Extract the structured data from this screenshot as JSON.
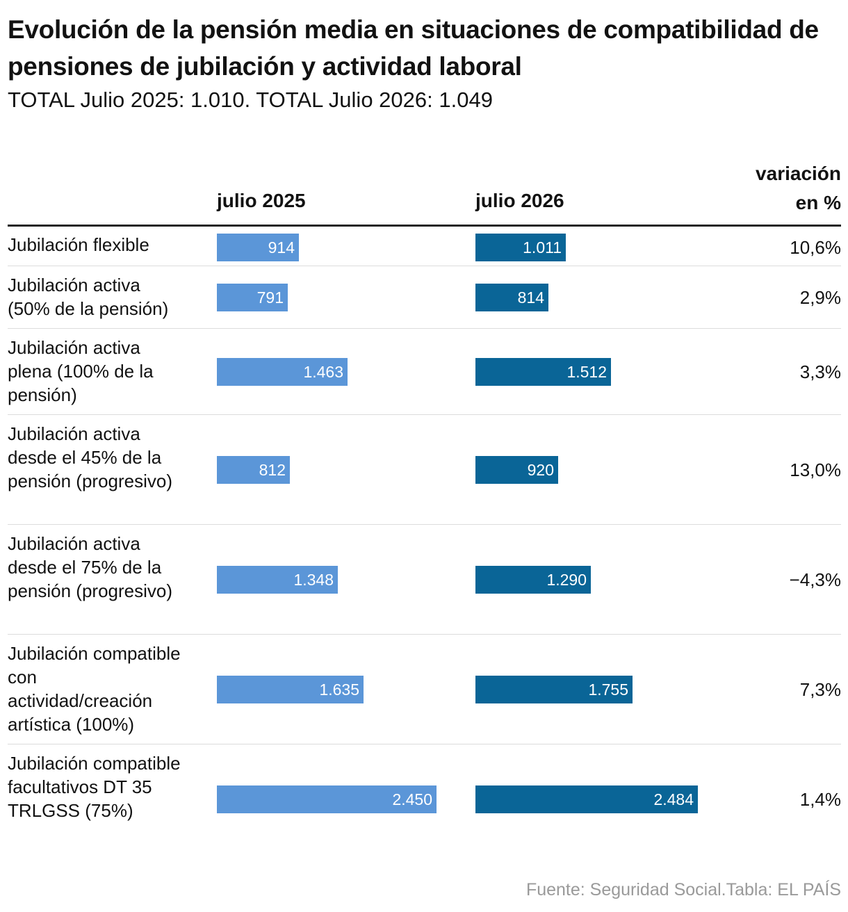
{
  "title": "Evolución de la pensión media en situaciones de compatibilidad de pensiones de jubilación y actividad laboral",
  "subtitle": "TOTAL Julio 2025: 1.010. TOTAL Julio 2026: 1.049",
  "columns": {
    "col_2025": "julio 2025",
    "col_2026": "julio 2026",
    "variation_line1": "variación",
    "variation_line2": "en %"
  },
  "source": "Fuente: Seguridad Social.Tabla: EL PAÍS",
  "colors": {
    "bar_2025": "#5b96d8",
    "bar_2026": "#0a6597"
  },
  "chart_data": {
    "type": "table",
    "title": "Evolución de la pensión media en situaciones de compatibilidad de pensiones de jubilación y actividad laboral",
    "series": [
      {
        "name": "julio 2025",
        "values": [
          914,
          791,
          1463,
          812,
          1348,
          1635,
          2450
        ]
      },
      {
        "name": "julio 2026",
        "values": [
          1011,
          814,
          1512,
          920,
          1290,
          1755,
          2484
        ]
      }
    ],
    "max_value": 2484,
    "rows": [
      {
        "label": "Jubilación flexible",
        "v2025": 914,
        "v2025_text": "914",
        "v2026": 1011,
        "v2026_text": "1.011",
        "variation": "10,6%"
      },
      {
        "label": "Jubilación activa (50% de la pensión)",
        "v2025": 791,
        "v2025_text": "791",
        "v2026": 814,
        "v2026_text": "814",
        "variation": "2,9%"
      },
      {
        "label": "Jubilación activa plena (100% de la pensión)",
        "v2025": 1463,
        "v2025_text": "1.463",
        "v2026": 1512,
        "v2026_text": "1.512",
        "variation": "3,3%"
      },
      {
        "label": "Jubilación activa desde el 45% de la pensión (progresivo)",
        "v2025": 812,
        "v2025_text": "812",
        "v2026": 920,
        "v2026_text": "920",
        "variation": "13,0%"
      },
      {
        "label": "Jubilación activa desde el 75% de la pensión (progresivo)",
        "v2025": 1348,
        "v2025_text": "1.348",
        "v2026": 1290,
        "v2026_text": "1.290",
        "variation": "−4,3%"
      },
      {
        "label": "Jubilación compatible con actividad/creación artística (100%)",
        "v2025": 1635,
        "v2025_text": "1.635",
        "v2026": 1755,
        "v2026_text": "1.755",
        "variation": "7,3%"
      },
      {
        "label": "Jubilación compatible facultativos DT 35 TRLGSS (75%)",
        "v2025": 2450,
        "v2025_text": "2.450",
        "v2026": 2484,
        "v2026_text": "2.484",
        "variation": "1,4%"
      }
    ]
  }
}
